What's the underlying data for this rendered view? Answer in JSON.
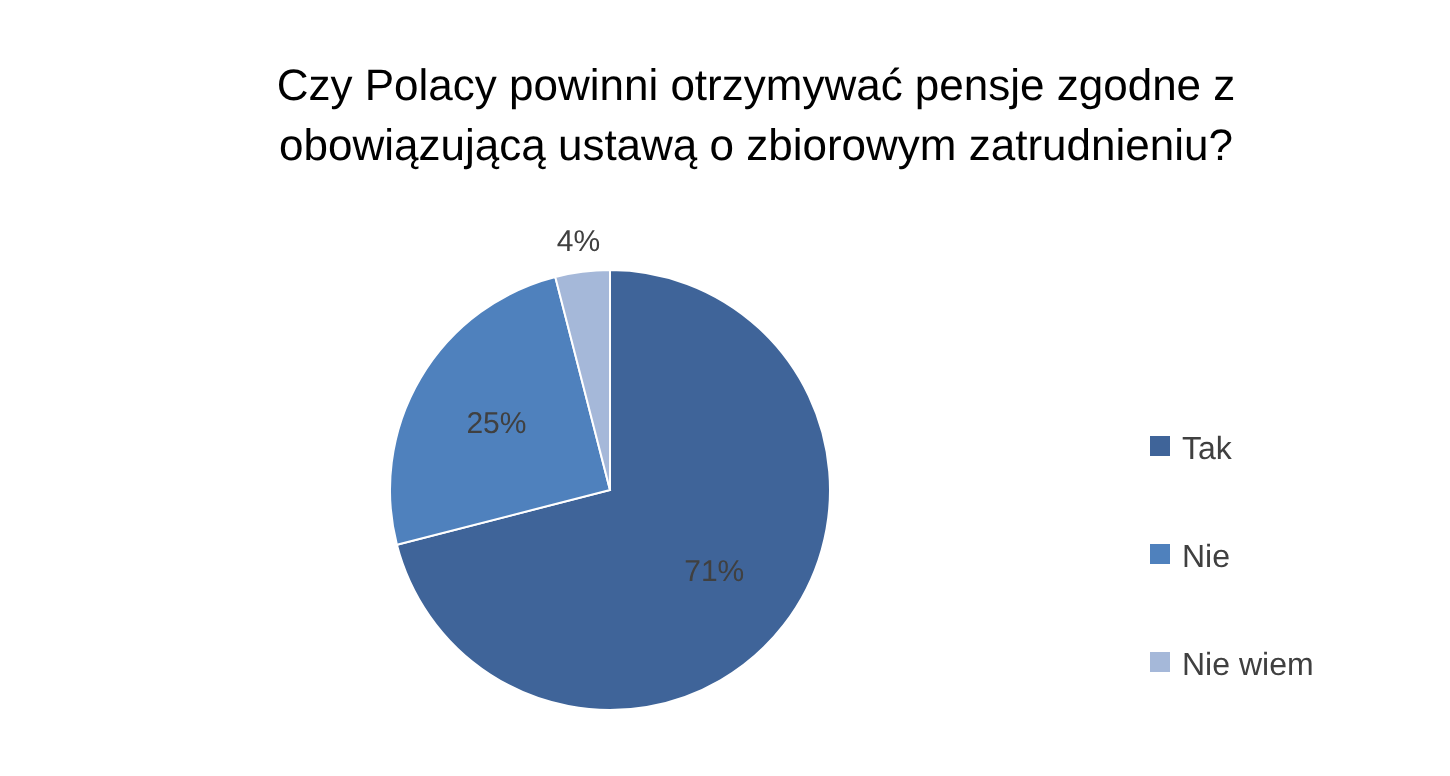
{
  "chart_data": {
    "type": "pie",
    "title": "Czy Polacy powinni otrzymywać pensje zgodne z obowiązującą ustawą o zbiorowym zatrudnieniu?",
    "categories": [
      "Tak",
      "Nie",
      "Nie wiem"
    ],
    "values": [
      71,
      25,
      4
    ],
    "colors": [
      "#3f6499",
      "#4f81bd",
      "#a5b8d9"
    ],
    "value_labels": [
      "71%",
      "25%",
      "4%"
    ],
    "legend": "right"
  }
}
